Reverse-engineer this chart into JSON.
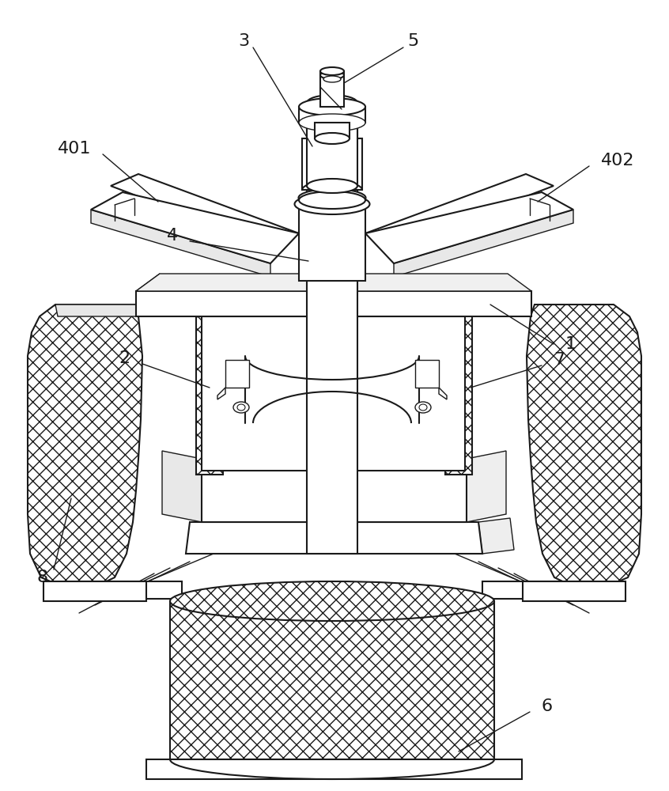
{
  "background_color": "#ffffff",
  "line_color": "#1a1a1a",
  "fig_width": 8.46,
  "fig_height": 10.0,
  "label_fontsize": 16
}
